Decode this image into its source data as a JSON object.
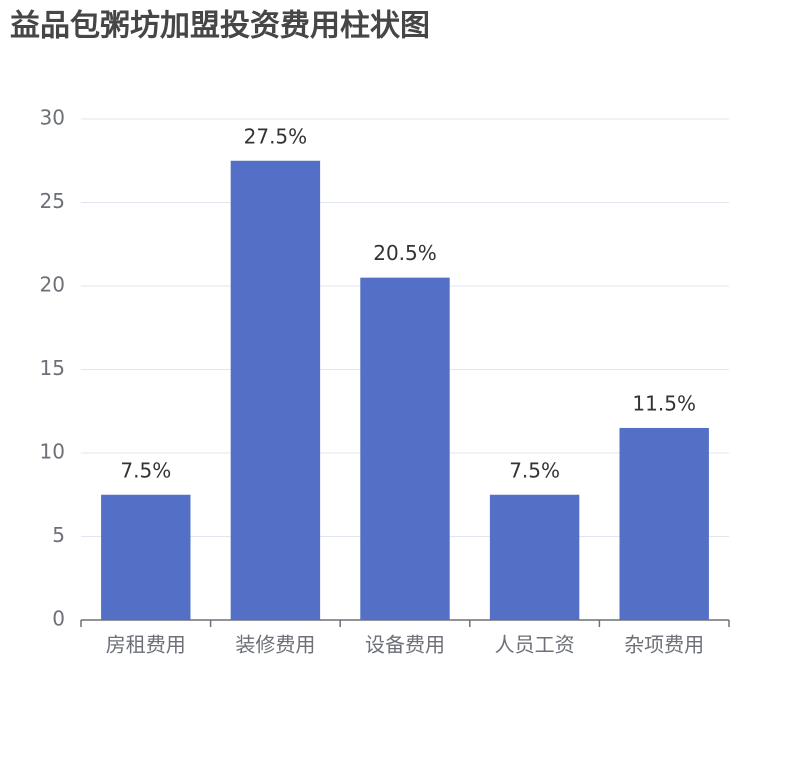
{
  "chart_data": {
    "type": "bar",
    "title": "益品包粥坊加盟投资费用柱状图",
    "categories": [
      "房租费用",
      "装修费用",
      "设备费用",
      "人员工资",
      "杂项费用"
    ],
    "values": [
      7.5,
      27.5,
      20.5,
      7.5,
      11.5
    ],
    "value_labels": [
      "7.5%",
      "27.5%",
      "20.5%",
      "7.5%",
      "11.5%"
    ],
    "color": "#5470c6",
    "ylim": [
      0,
      30
    ],
    "yticks": [
      0,
      5,
      10,
      15,
      20,
      25,
      30
    ],
    "grid": true
  }
}
